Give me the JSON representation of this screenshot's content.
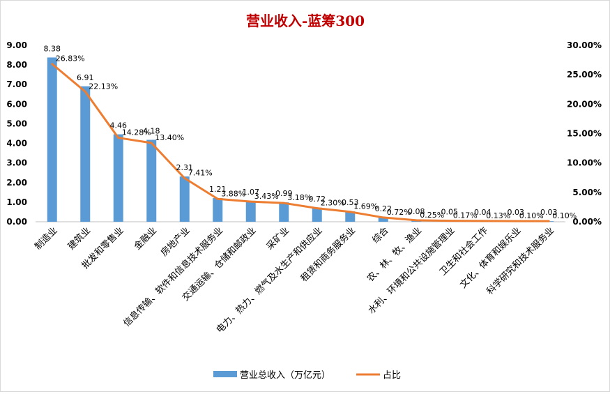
{
  "chart_data": {
    "type": "bar",
    "title": "营业收入-蓝筹300",
    "categories": [
      "制造业",
      "建筑业",
      "批发和零售业",
      "金融业",
      "房地产业",
      "信息传输、软件和信息技术服务业",
      "交通运输、仓储和邮政业",
      "采矿业",
      "电力、热力、燃气及水生产和供应业",
      "租赁和商务服务业",
      "综合",
      "农、林、牧、渔业",
      "水利、环境和公共设施管理业",
      "卫生和社会工作",
      "文化、体育和娱乐业",
      "科学研究和技术服务业"
    ],
    "series": [
      {
        "name": "营业总收入（万亿元）",
        "type": "bar",
        "axis": "left",
        "color": "#5b9bd5",
        "values": [
          8.38,
          6.91,
          4.46,
          4.18,
          2.31,
          1.21,
          1.07,
          0.99,
          0.72,
          0.53,
          0.22,
          0.08,
          0.05,
          0.04,
          0.03,
          0.03
        ],
        "labels": [
          "8.38",
          "6.91",
          "4.46",
          "4.18",
          "2.31",
          "1.21",
          "1.07",
          "0.99",
          "0.72",
          "0.53",
          "0.22",
          "0.08",
          "0.05",
          "0.04",
          "0.03",
          "0.03"
        ]
      },
      {
        "name": "占比",
        "type": "line",
        "axis": "right",
        "color": "#ed7d31",
        "values": [
          26.83,
          22.13,
          14.28,
          13.4,
          7.41,
          3.88,
          3.43,
          3.18,
          2.3,
          1.69,
          0.72,
          0.25,
          0.17,
          0.13,
          0.1,
          0.1
        ],
        "labels": [
          "26.83%",
          "22.13%",
          "14.28%",
          "13.40%",
          "7.41%",
          "3.88%",
          "3.43%",
          "3.18%",
          "2.30%",
          "1.69%",
          "0.72%",
          "0.25%",
          "0.17%",
          "0.13%",
          "0.10%",
          "0.10%"
        ]
      }
    ],
    "y_left": {
      "min": 0,
      "max": 9,
      "ticks": [
        "0.00",
        "1.00",
        "2.00",
        "3.00",
        "4.00",
        "5.00",
        "6.00",
        "7.00",
        "8.00",
        "9.00"
      ]
    },
    "y_right": {
      "min": 0,
      "max": 30,
      "ticks": [
        "0.00%",
        "5.00%",
        "10.00%",
        "15.00%",
        "20.00%",
        "25.00%",
        "30.00%"
      ]
    },
    "legend": {
      "position": "bottom",
      "items": [
        "营业总收入（万亿元）",
        "占比"
      ]
    },
    "grid": false
  }
}
